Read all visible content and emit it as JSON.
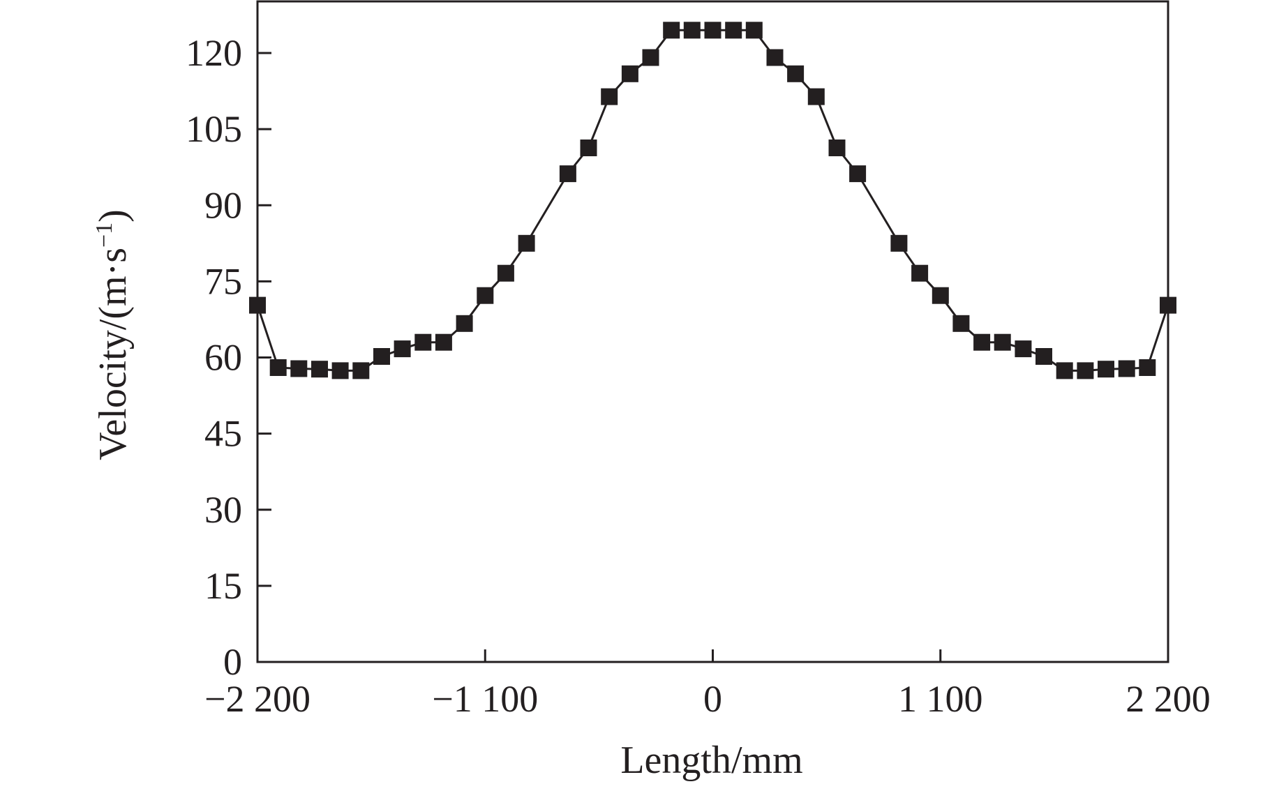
{
  "chart_data": {
    "type": "line",
    "title": "",
    "xlabel": "Length/mm",
    "ylabel": {
      "main": "Velocity/(m·s",
      "sup": "−1",
      "close": ")"
    },
    "xlim": [
      -2200,
      2200
    ],
    "ylim": [
      0,
      120
    ],
    "x_ticks": [
      -2200,
      -1100,
      0,
      1100,
      2200
    ],
    "x_tick_labels": [
      "−2 200",
      "−1 100",
      "0",
      "1 100",
      "2 200"
    ],
    "y_ticks": [
      0,
      15,
      30,
      45,
      60,
      75,
      90,
      105,
      120
    ],
    "y_tick_labels": [
      "0",
      "15",
      "30",
      "45",
      "60",
      "75",
      "90",
      "105",
      "120"
    ],
    "grid": false,
    "legend": "none",
    "colors": {
      "line": "#231f20",
      "marker": "#231f20",
      "axis": "#231f20"
    },
    "marker": "square",
    "series": [
      {
        "x": [
          -2200,
          -2100,
          -2000,
          -1900,
          -1800,
          -1700,
          -1600,
          -1500,
          -1400,
          -1300,
          -1200,
          -1100,
          -1000,
          -900,
          -700,
          -600,
          -500,
          -400,
          -300,
          -200,
          -100,
          0,
          100,
          200,
          300,
          400,
          500,
          600,
          700,
          900,
          1000,
          1100,
          1200,
          1300,
          1400,
          1500,
          1600,
          1700,
          1800,
          1900,
          2000,
          2100,
          2200
        ],
        "values": [
          70.3,
          58.0,
          57.8,
          57.7,
          57.4,
          57.4,
          60.2,
          61.7,
          63.0,
          63.0,
          66.7,
          72.2,
          76.6,
          82.5,
          96.2,
          101.3,
          111.4,
          115.9,
          119.1,
          124.5,
          124.5,
          124.5,
          124.5,
          124.5,
          119.1,
          115.9,
          111.4,
          101.3,
          96.2,
          82.5,
          76.6,
          72.2,
          66.7,
          63.0,
          63.0,
          61.7,
          60.2,
          57.4,
          57.4,
          57.7,
          57.8,
          58.0,
          70.3
        ]
      }
    ]
  }
}
